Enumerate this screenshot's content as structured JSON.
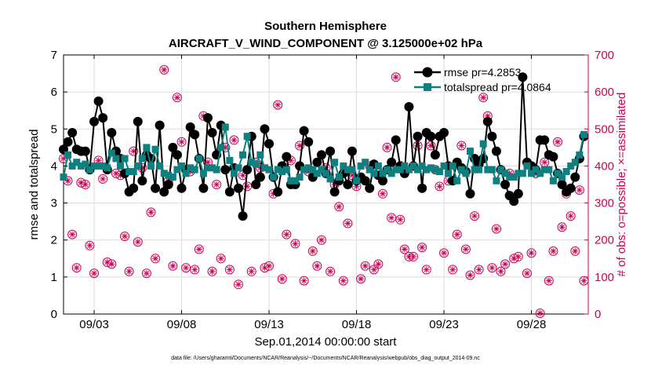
{
  "chart_data": {
    "type": "line",
    "title": "Southern Hemisphere",
    "subtitle": "AIRCRAFT_V_WIND_COMPONENT @ 3.125000e+02 hPa",
    "xlabel": "Sep.01,2014 00:00:00 start",
    "ylabel_left": "rmse and totalspread",
    "ylabel_right": "# of obs: o=possible; ×=assimilated",
    "footnote": "data file: /Users/gharamti/Documents/NCAR/Reanalysis/~/Documents/NCAR/Reanalysis/webpub/obs_diag_output_2014-09.nc",
    "xlim": [
      1.25,
      31.25
    ],
    "ylim_left": [
      0,
      7
    ],
    "ylim_right": [
      0,
      700
    ],
    "x_ticks": [
      3,
      8,
      13,
      18,
      23,
      28
    ],
    "x_tick_labels": [
      "09/03",
      "09/08",
      "09/13",
      "09/18",
      "09/23",
      "09/28"
    ],
    "y_ticks_left": [
      0,
      1,
      2,
      3,
      4,
      5,
      6,
      7
    ],
    "y_ticks_right": [
      0,
      100,
      200,
      300,
      400,
      500,
      600,
      700
    ],
    "grid": true,
    "legend_position": "top-right",
    "colors": {
      "rmse": "#000000",
      "spread": "#0f8080",
      "obs": "#cc0055",
      "axis": "#000000",
      "right_axis": "#cc0055",
      "grid": "#dcdcdc"
    },
    "x": [
      1.25,
      1.5,
      1.75,
      2.0,
      2.25,
      2.5,
      2.75,
      3.0,
      3.25,
      3.5,
      3.75,
      4.0,
      4.25,
      4.5,
      4.75,
      5.0,
      5.25,
      5.5,
      5.75,
      6.0,
      6.25,
      6.5,
      6.75,
      7.0,
      7.25,
      7.5,
      7.75,
      8.0,
      8.25,
      8.5,
      8.75,
      9.0,
      9.25,
      9.5,
      9.75,
      10.0,
      10.25,
      10.5,
      10.75,
      11.0,
      11.25,
      11.5,
      11.75,
      12.0,
      12.25,
      12.5,
      12.75,
      13.0,
      13.25,
      13.5,
      13.75,
      14.0,
      14.25,
      14.5,
      14.75,
      15.0,
      15.25,
      15.5,
      15.75,
      16.0,
      16.25,
      16.5,
      16.75,
      17.0,
      17.25,
      17.5,
      17.75,
      18.0,
      18.25,
      18.5,
      18.75,
      19.0,
      19.25,
      19.5,
      19.75,
      20.0,
      20.25,
      20.5,
      20.75,
      21.0,
      21.25,
      21.5,
      21.75,
      22.0,
      22.25,
      22.5,
      22.75,
      23.0,
      23.25,
      23.5,
      23.75,
      24.0,
      24.25,
      24.5,
      24.75,
      25.0,
      25.25,
      25.5,
      25.75,
      26.0,
      26.25,
      26.5,
      26.75,
      27.0,
      27.25,
      27.5,
      27.75,
      28.0,
      28.25,
      28.5,
      28.75,
      29.0,
      29.25,
      29.5,
      29.75,
      30.0,
      30.25,
      30.5,
      30.75,
      31.0
    ],
    "series": [
      {
        "name": "rmse pr=4.2853",
        "values": [
          4.45,
          4.65,
          4.9,
          4.45,
          4.4,
          4.4,
          3.9,
          5.2,
          5.75,
          5.3,
          3.9,
          4.9,
          4.4,
          4.2,
          3.8,
          3.3,
          3.4,
          5.2,
          3.6,
          4.3,
          4.2,
          3.4,
          5.1,
          3.3,
          3.5,
          4.5,
          4.3,
          3.4,
          3.9,
          5.05,
          4.85,
          4.2,
          3.4,
          5.3,
          4.9,
          4.3,
          5.1,
          3.9,
          3.3,
          3.95,
          3.4,
          2.65,
          3.9,
          4.8,
          3.5,
          3.7,
          5.0,
          4.6,
          3.7,
          3.3,
          4.0,
          4.25,
          3.5,
          3.5,
          4.0,
          4.95,
          4.65,
          3.7,
          4.1,
          4.3,
          3.8,
          4.4,
          3.3,
          3.6,
          3.8,
          3.5,
          4.4,
          3.6,
          3.7,
          3.6,
          3.4,
          4.05,
          3.75,
          3.6,
          3.9,
          4.1,
          4.7,
          4.0,
          3.8,
          5.6,
          4.0,
          4.8,
          3.4,
          4.9,
          4.8,
          4.3,
          4.8,
          4.9,
          4.0,
          3.6,
          4.1,
          3.95,
          3.85,
          3.25,
          4.2,
          4.05,
          4.2,
          5.2,
          4.8,
          4.4,
          3.9,
          3.5,
          3.2,
          3.05,
          3.25,
          6.4,
          4.1,
          4.0,
          3.9,
          4.7,
          4.7,
          4.3,
          4.25,
          3.8,
          3.5,
          3.3,
          3.4,
          3.7,
          4.2,
          4.8
        ]
      },
      {
        "name": "totalspread pr=4.0864",
        "values": [
          3.7,
          4.3,
          4.0,
          4.1,
          4.0,
          4.05,
          3.9,
          4.0,
          4.0,
          4.0,
          3.95,
          4.35,
          4.2,
          4.0,
          4.2,
          3.85,
          3.85,
          4.0,
          4.2,
          4.5,
          4.0,
          4.45,
          4.0,
          3.8,
          3.75,
          3.7,
          3.9,
          4.0,
          3.8,
          3.95,
          3.9,
          4.2,
          3.8,
          3.95,
          3.95,
          3.9,
          4.5,
          5.05,
          4.15,
          3.8,
          3.95,
          4.3,
          4.8,
          4.1,
          4.05,
          4.3,
          3.95,
          3.9,
          3.7,
          3.9,
          3.85,
          3.9,
          3.6,
          3.6,
          3.7,
          3.9,
          3.95,
          3.9,
          3.8,
          3.9,
          3.8,
          3.65,
          4.1,
          3.7,
          4.0,
          3.9,
          3.9,
          3.6,
          4.0,
          4.1,
          3.9,
          3.8,
          4.0,
          3.8,
          3.9,
          3.8,
          3.9,
          3.9,
          4.0,
          3.9,
          4.0,
          3.9,
          4.0,
          3.9,
          3.95,
          3.9,
          3.85,
          4.0,
          3.8,
          4.0,
          3.6,
          3.9,
          3.8,
          4.4,
          3.9,
          3.9,
          4.6,
          3.9,
          3.9,
          3.6,
          3.9,
          3.8,
          3.7,
          3.7,
          3.8,
          3.8,
          4.0,
          3.8,
          3.9,
          3.8,
          3.9,
          3.9,
          3.6,
          3.8,
          3.7,
          3.85,
          4.0,
          4.1,
          4.3,
          4.85
        ]
      }
    ],
    "obs_possible": [
      [
        1.25,
        420
      ],
      [
        1.5,
        360
      ],
      [
        1.75,
        215
      ],
      [
        2.0,
        125
      ],
      [
        2.25,
        355
      ],
      [
        2.5,
        350
      ],
      [
        2.75,
        185
      ],
      [
        3.0,
        110
      ],
      [
        3.25,
        415
      ],
      [
        3.5,
        365
      ],
      [
        3.75,
        140
      ],
      [
        4.0,
        135
      ],
      [
        4.25,
        380
      ],
      [
        4.5,
        375
      ],
      [
        4.75,
        210
      ],
      [
        5.0,
        115
      ],
      [
        5.25,
        440
      ],
      [
        5.5,
        195
      ],
      [
        5.75,
        395
      ],
      [
        6.0,
        110
      ],
      [
        6.25,
        275
      ],
      [
        6.5,
        150
      ],
      [
        6.75,
        510
      ],
      [
        7.0,
        660
      ],
      [
        7.25,
        360
      ],
      [
        7.5,
        130
      ],
      [
        7.75,
        585
      ],
      [
        8.0,
        465
      ],
      [
        8.25,
        125
      ],
      [
        8.5,
        385
      ],
      [
        8.75,
        120
      ],
      [
        9.0,
        175
      ],
      [
        9.25,
        535
      ],
      [
        9.5,
        410
      ],
      [
        9.75,
        115
      ],
      [
        10.0,
        350
      ],
      [
        10.25,
        150
      ],
      [
        10.5,
        450
      ],
      [
        10.75,
        120
      ],
      [
        11.0,
        470
      ],
      [
        11.25,
        80
      ],
      [
        11.5,
        375
      ],
      [
        11.75,
        345
      ],
      [
        12.0,
        115
      ],
      [
        12.25,
        410
      ],
      [
        12.5,
        395
      ],
      [
        12.75,
        125
      ],
      [
        13.0,
        130
      ],
      [
        13.25,
        325
      ],
      [
        13.5,
        565
      ],
      [
        13.75,
        95
      ],
      [
        14.0,
        215
      ],
      [
        14.25,
        415
      ],
      [
        14.5,
        190
      ],
      [
        14.75,
        455
      ],
      [
        15.0,
        90
      ],
      [
        15.25,
        385
      ],
      [
        15.5,
        170
      ],
      [
        15.75,
        130
      ],
      [
        16.0,
        200
      ],
      [
        16.25,
        395
      ],
      [
        16.5,
        115
      ],
      [
        16.75,
        350
      ],
      [
        17.0,
        290
      ],
      [
        17.25,
        90
      ],
      [
        17.5,
        245
      ],
      [
        17.75,
        375
      ],
      [
        18.0,
        345
      ],
      [
        18.25,
        95
      ],
      [
        18.5,
        130
      ],
      [
        18.75,
        400
      ],
      [
        19.0,
        120
      ],
      [
        19.25,
        135
      ],
      [
        19.5,
        325
      ],
      [
        19.75,
        450
      ],
      [
        20.0,
        260
      ],
      [
        20.25,
        640
      ],
      [
        20.5,
        255
      ],
      [
        20.75,
        175
      ],
      [
        21.0,
        155
      ],
      [
        21.25,
        155
      ],
      [
        21.5,
        455
      ],
      [
        21.75,
        180
      ],
      [
        22.0,
        120
      ],
      [
        22.25,
        455
      ],
      [
        22.5,
        390
      ],
      [
        22.75,
        345
      ],
      [
        23.0,
        165
      ],
      [
        23.25,
        360
      ],
      [
        23.5,
        120
      ],
      [
        23.75,
        215
      ],
      [
        24.0,
        455
      ],
      [
        24.25,
        175
      ],
      [
        24.5,
        105
      ],
      [
        24.75,
        265
      ],
      [
        25.0,
        120
      ],
      [
        25.25,
        585
      ],
      [
        25.5,
        535
      ],
      [
        25.75,
        125
      ],
      [
        26.0,
        230
      ],
      [
        26.25,
        115
      ],
      [
        26.5,
        135
      ],
      [
        26.75,
        380
      ],
      [
        27.0,
        150
      ],
      [
        27.25,
        155
      ],
      [
        27.75,
        110
      ],
      [
        28.0,
        165
      ],
      [
        28.25,
        380
      ],
      [
        28.5,
        2
      ],
      [
        28.75,
        410
      ],
      [
        29.0,
        90
      ],
      [
        29.25,
        170
      ],
      [
        29.5,
        465
      ],
      [
        29.75,
        235
      ],
      [
        30.0,
        325
      ],
      [
        30.25,
        265
      ],
      [
        30.5,
        170
      ],
      [
        30.75,
        335
      ],
      [
        31.0,
        90
      ]
    ]
  }
}
